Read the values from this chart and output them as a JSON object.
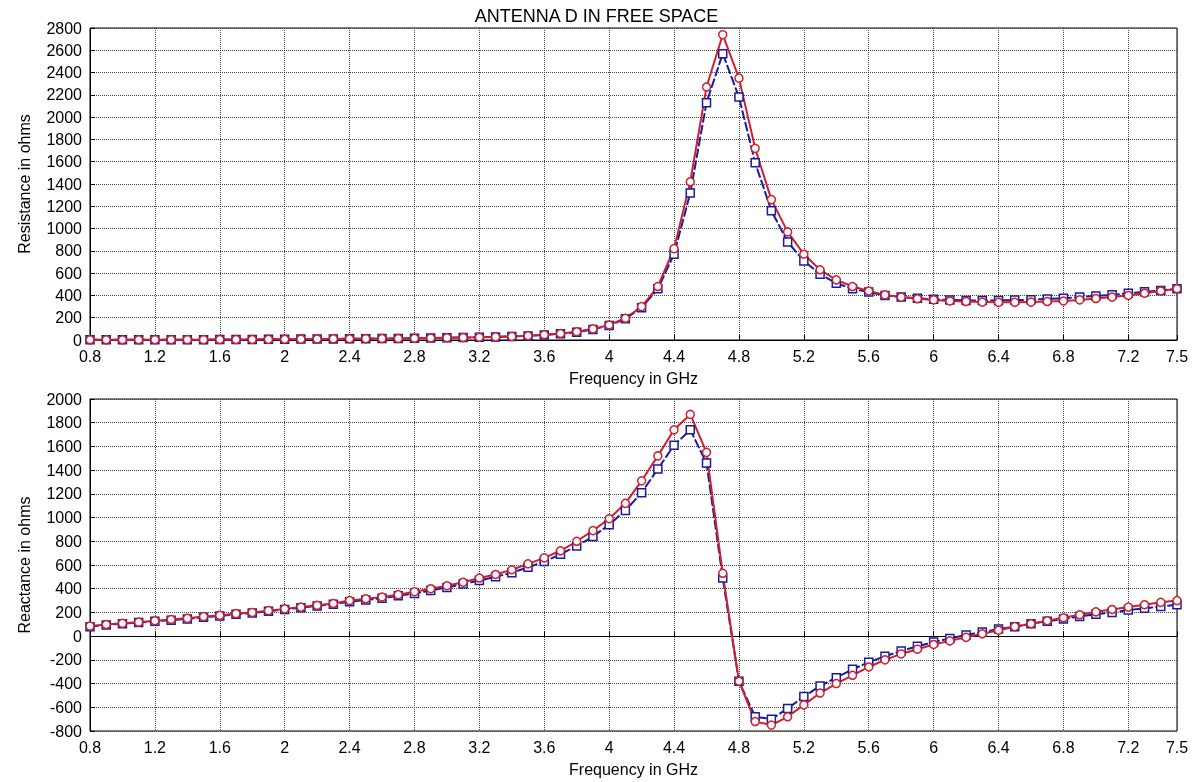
{
  "chart_data": [
    {
      "type": "line",
      "title": "ANTENNA D IN FREE SPACE",
      "xlabel": "Frequency in GHz",
      "ylabel": "Resistance in ohms",
      "grid": true,
      "legend": false,
      "x": [
        0.8,
        0.9,
        1.0,
        1.1,
        1.2,
        1.3,
        1.4,
        1.5,
        1.6,
        1.7,
        1.8,
        1.9,
        2.0,
        2.1,
        2.2,
        2.3,
        2.4,
        2.5,
        2.6,
        2.7,
        2.8,
        2.9,
        3.0,
        3.1,
        3.2,
        3.3,
        3.4,
        3.5,
        3.6,
        3.7,
        3.8,
        3.9,
        4.0,
        4.1,
        4.2,
        4.3,
        4.4,
        4.5,
        4.6,
        4.7,
        4.8,
        4.9,
        5.0,
        5.1,
        5.2,
        5.3,
        5.4,
        5.5,
        5.6,
        5.7,
        5.8,
        5.9,
        6.0,
        6.1,
        6.2,
        6.3,
        6.4,
        6.5,
        6.6,
        6.7,
        6.8,
        6.9,
        7.0,
        7.1,
        7.2,
        7.3,
        7.4,
        7.5
      ],
      "xlim": [
        0.8,
        7.5
      ],
      "xticks": [
        0.8,
        1.2,
        1.6,
        2,
        2.4,
        2.8,
        3.2,
        3.6,
        4,
        4.4,
        4.8,
        5.2,
        5.6,
        6,
        6.4,
        6.8,
        7.2,
        7.5
      ],
      "ylim": [
        0,
        2800
      ],
      "yticks": [
        0,
        200,
        400,
        600,
        800,
        1000,
        1200,
        1400,
        1600,
        1800,
        2000,
        2200,
        2400,
        2600,
        2800
      ],
      "series": [
        {
          "color": "#1a1a9e",
          "marker": "square",
          "line_style": "dashed",
          "values": [
            2,
            2,
            2,
            2,
            3,
            3,
            3,
            3,
            4,
            4,
            5,
            6,
            7,
            8,
            9,
            10,
            11,
            12,
            13,
            14,
            16,
            18,
            20,
            22,
            25,
            28,
            32,
            37,
            45,
            55,
            70,
            95,
            130,
            190,
            290,
            460,
            770,
            1320,
            2130,
            2570,
            2180,
            1590,
            1160,
            880,
            710,
            590,
            510,
            460,
            430,
            400,
            385,
            375,
            365,
            360,
            355,
            355,
            355,
            358,
            362,
            368,
            375,
            385,
            395,
            405,
            420,
            432,
            445,
            460
          ]
        },
        {
          "color": "#d0202e",
          "marker": "circle",
          "line_style": "solid",
          "values": [
            2,
            2,
            2,
            2,
            3,
            3,
            3,
            3,
            4,
            4,
            5,
            6,
            7,
            8,
            9,
            10,
            11,
            12,
            13,
            14,
            16,
            18,
            20,
            22,
            25,
            28,
            32,
            38,
            47,
            58,
            74,
            100,
            135,
            195,
            300,
            480,
            820,
            1420,
            2270,
            2740,
            2350,
            1720,
            1260,
            970,
            770,
            630,
            540,
            480,
            440,
            405,
            385,
            370,
            360,
            350,
            345,
            340,
            338,
            338,
            340,
            345,
            350,
            360,
            372,
            385,
            400,
            420,
            440,
            460
          ]
        }
      ]
    },
    {
      "type": "line",
      "xlabel": "Frequency in GHz",
      "ylabel": "Reactance in ohms",
      "grid": true,
      "legend": false,
      "x": [
        0.8,
        0.9,
        1.0,
        1.1,
        1.2,
        1.3,
        1.4,
        1.5,
        1.6,
        1.7,
        1.8,
        1.9,
        2.0,
        2.1,
        2.2,
        2.3,
        2.4,
        2.5,
        2.6,
        2.7,
        2.8,
        2.9,
        3.0,
        3.1,
        3.2,
        3.3,
        3.4,
        3.5,
        3.6,
        3.7,
        3.8,
        3.9,
        4.0,
        4.1,
        4.2,
        4.3,
        4.4,
        4.5,
        4.6,
        4.7,
        4.8,
        4.9,
        5.0,
        5.1,
        5.2,
        5.3,
        5.4,
        5.5,
        5.6,
        5.7,
        5.8,
        5.9,
        6.0,
        6.1,
        6.2,
        6.3,
        6.4,
        6.5,
        6.6,
        6.7,
        6.8,
        6.9,
        7.0,
        7.1,
        7.2,
        7.3,
        7.4,
        7.5
      ],
      "xlim": [
        0.8,
        7.5
      ],
      "xticks": [
        0.8,
        1.2,
        1.6,
        2,
        2.4,
        2.8,
        3.2,
        3.6,
        4,
        4.4,
        4.8,
        5.2,
        5.6,
        6,
        6.4,
        6.8,
        7.2,
        7.5
      ],
      "ylim": [
        -800,
        2000
      ],
      "yticks": [
        -800,
        -600,
        -400,
        -200,
        0,
        200,
        400,
        600,
        800,
        1000,
        1200,
        1400,
        1600,
        1800,
        2000
      ],
      "series": [
        {
          "color": "#1a1a9e",
          "marker": "square",
          "line_style": "dashed",
          "values": [
            80,
            95,
            105,
            115,
            125,
            135,
            145,
            160,
            170,
            185,
            195,
            210,
            225,
            240,
            255,
            270,
            290,
            305,
            320,
            340,
            360,
            385,
            410,
            440,
            470,
            500,
            535,
            580,
            630,
            690,
            760,
            840,
            940,
            1060,
            1210,
            1410,
            1610,
            1740,
            1460,
            490,
            -380,
            -680,
            -700,
            -610,
            -510,
            -420,
            -350,
            -280,
            -220,
            -170,
            -125,
            -85,
            -50,
            -20,
            10,
            35,
            60,
            80,
            105,
            125,
            145,
            165,
            185,
            200,
            220,
            235,
            250,
            265
          ]
        },
        {
          "color": "#d0202e",
          "marker": "circle",
          "line_style": "solid",
          "values": [
            85,
            98,
            108,
            118,
            130,
            140,
            150,
            165,
            175,
            190,
            200,
            215,
            230,
            245,
            260,
            275,
            300,
            315,
            330,
            350,
            375,
            400,
            425,
            455,
            490,
            520,
            560,
            610,
            660,
            720,
            800,
            890,
            990,
            1120,
            1310,
            1520,
            1740,
            1870,
            1550,
            530,
            -380,
            -720,
            -750,
            -680,
            -580,
            -480,
            -400,
            -330,
            -260,
            -200,
            -150,
            -110,
            -70,
            -40,
            -10,
            20,
            50,
            80,
            105,
            130,
            155,
            180,
            205,
            225,
            245,
            265,
            285,
            300
          ]
        }
      ]
    }
  ]
}
